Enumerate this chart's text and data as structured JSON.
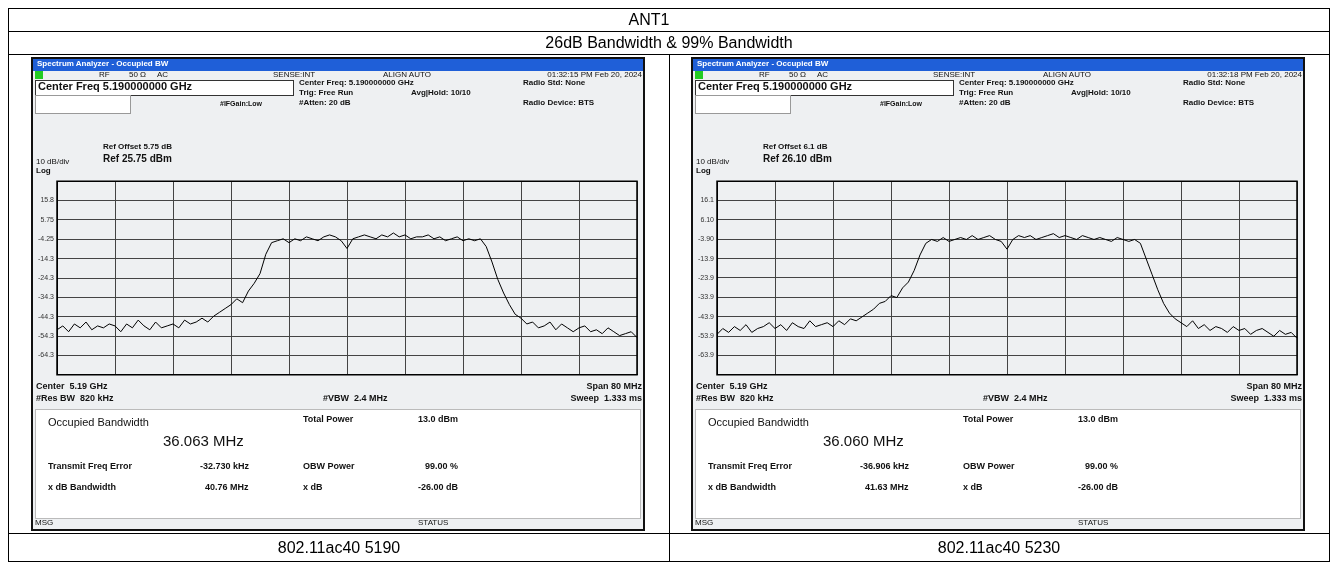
{
  "chart_data": [
    {
      "type": "line",
      "title": "ANT1",
      "subtitle": "26dB Bandwidth & 99% Bandwidth",
      "categories": [
        null,
        null,
        null,
        null,
        null,
        null,
        null,
        null,
        null,
        null,
        null,
        null,
        null,
        null,
        null,
        null,
        null,
        null,
        null,
        null,
        null,
        null,
        null,
        null,
        null,
        null,
        null,
        null,
        null,
        null,
        null,
        null,
        null,
        null,
        null,
        null,
        null,
        null,
        null,
        null,
        null,
        null,
        null,
        null,
        null,
        null,
        null,
        null,
        null,
        null,
        null,
        null,
        null,
        null,
        null,
        null,
        null,
        null,
        null,
        null,
        null,
        null,
        null,
        null,
        null,
        null,
        null,
        null,
        null,
        null,
        null,
        null,
        null,
        null,
        null,
        null,
        null,
        null,
        null,
        null,
        null,
        null,
        null,
        null,
        null,
        null,
        null,
        null,
        null,
        null,
        null,
        null,
        null,
        null,
        null,
        null,
        null,
        null,
        null,
        null,
        null
      ],
      "values": [
        -51,
        -49,
        -52,
        -48,
        -50,
        -47,
        -51,
        -49,
        -50,
        -48,
        -49,
        -52,
        -48,
        -50,
        -46,
        -49,
        -51,
        -47,
        -50,
        -49,
        -48,
        -50,
        -46,
        -48,
        -47,
        -45,
        -47,
        -44,
        -42,
        -40,
        -38,
        -35,
        -37,
        -31,
        -27,
        -22,
        -12,
        -6,
        -5,
        -4,
        -6,
        -4,
        -5,
        -3,
        -4,
        -5,
        -3,
        -2,
        -3,
        -5,
        -9,
        -4,
        -3,
        -2,
        -3,
        -4,
        -2,
        -3,
        -1,
        -3,
        -2,
        -4,
        -3,
        -3,
        -2,
        -4,
        -3,
        -5,
        -4,
        -3,
        -5,
        -4,
        -5,
        -4,
        -8,
        -16,
        -25,
        -32,
        -38,
        -43,
        -45,
        -48,
        -47,
        -50,
        -49,
        -47,
        -51,
        -48,
        -50,
        -52,
        -50,
        -49,
        -52,
        -51,
        -53,
        -50,
        -52,
        -54,
        -53,
        -52,
        -55
      ],
      "color": "#000000",
      "ylim": [
        -74.25,
        25.75
      ],
      "yticks": [
        {
          "value": 15.75,
          "label": "15.8"
        },
        5.75,
        -4.25,
        {
          "value": -14.25,
          "label": "-14.3"
        },
        {
          "value": -24.25,
          "label": "-24.3"
        },
        {
          "value": -34.25,
          "label": "-34.3"
        },
        {
          "value": -44.25,
          "label": "-44.3"
        },
        {
          "value": -54.25,
          "label": "-54.3"
        },
        {
          "value": -64.25,
          "label": "-64.3"
        }
      ],
      "grid": true,
      "tick_labels": "y",
      "annotations": [
        "Spectrum Analyzer - Occupied BW",
        "RF",
        "50 Ω",
        "AC",
        "SENSE:INT",
        "ALIGN AUTO",
        "01:32:15 PM Feb 20, 2024",
        "Center Freq 5.190000000 GHz",
        "Center Freq: 5.190000000 GHz",
        "Trig: Free Run",
        "Avg|Hold: 10/10",
        "#IFGain:Low",
        "#Atten: 20 dB",
        "Radio Std: None",
        "Radio Device: BTS",
        "Ref Offset 5.75 dB",
        "10 dB/div",
        "Ref 25.75 dBm",
        "Log",
        "Center  5.19 GHz",
        "Span 80 MHz",
        "#Res BW  820 kHz",
        "#VBW  2.4 MHz",
        "Sweep  1.333 ms",
        "Occupied Bandwidth",
        "36.063 MHz",
        "Total Power",
        "13.0 dBm",
        "Transmit Freq Error",
        "-32.730 kHz",
        "OBW Power",
        "99.00 %",
        "x dB Bandwidth",
        "40.76 MHz",
        "x dB",
        "-26.00 dB",
        "MSG",
        "STATUS",
        "802.11ac40 5190"
      ]
    },
    {
      "type": "line",
      "categories": [
        null,
        null,
        null,
        null,
        null,
        null,
        null,
        null,
        null,
        null,
        null,
        null,
        null,
        null,
        null,
        null,
        null,
        null,
        null,
        null,
        null,
        null,
        null,
        null,
        null,
        null,
        null,
        null,
        null,
        null,
        null,
        null,
        null,
        null,
        null,
        null,
        null,
        null,
        null,
        null,
        null,
        null,
        null,
        null,
        null,
        null,
        null,
        null,
        null,
        null,
        null,
        null,
        null,
        null,
        null,
        null,
        null,
        null,
        null,
        null,
        null,
        null,
        null,
        null,
        null,
        null,
        null,
        null,
        null,
        null,
        null,
        null,
        null,
        null,
        null,
        null,
        null,
        null,
        null,
        null,
        null,
        null,
        null,
        null,
        null,
        null,
        null,
        null,
        null,
        null,
        null,
        null,
        null,
        null,
        null,
        null,
        null,
        null,
        null,
        null,
        null
      ],
      "values": [
        -53,
        -50,
        -52,
        -49,
        -51,
        -48,
        -52,
        -50,
        -49,
        -47,
        -50,
        -48,
        -51,
        -47,
        -49,
        -50,
        -46,
        -49,
        -48,
        -47,
        -49,
        -46,
        -48,
        -45,
        -46,
        -44,
        -42,
        -40,
        -37,
        -36,
        -33,
        -34,
        -29,
        -26,
        -20,
        -12,
        -6,
        -4,
        -5,
        -3,
        -5,
        -4,
        -3,
        -4,
        -2,
        -4,
        -3,
        -2,
        -4,
        -5,
        -9,
        -4,
        -2,
        -3,
        -2,
        -4,
        -3,
        -2,
        -1,
        -3,
        -2,
        -3,
        -4,
        -2,
        -3,
        -4,
        -3,
        -4,
        -5,
        -3,
        -4,
        -5,
        -4,
        -6,
        -14,
        -22,
        -30,
        -37,
        -42,
        -45,
        -47,
        -49,
        -46,
        -50,
        -48,
        -51,
        -49,
        -50,
        -52,
        -49,
        -51,
        -50,
        -53,
        -51,
        -50,
        -52,
        -54,
        -51,
        -53,
        -52,
        -55
      ],
      "color": "#000000",
      "ylim": [
        -73.9,
        26.1
      ],
      "yticks": [
        16.1,
        {
          "value": 6.1,
          "label": "6.10"
        },
        {
          "value": -3.9,
          "label": "-3.90"
        },
        -13.9,
        -23.9,
        -33.9,
        -43.9,
        -53.9,
        -63.9
      ],
      "grid": true,
      "tick_labels": "y",
      "annotations": [
        "Spectrum Analyzer - Occupied BW",
        "RF",
        "50 Ω",
        "AC",
        "SENSE:INT",
        "ALIGN AUTO",
        "01:32:18 PM Feb 20, 2024",
        "Center Freq 5.190000000 GHz",
        "Center Freq: 5.190000000 GHz",
        "Trig: Free Run",
        "Avg|Hold: 10/10",
        "#IFGain:Low",
        "#Atten: 20 dB",
        "Radio Std: None",
        "Radio Device: BTS",
        "Ref Offset 6.1 dB",
        "10 dB/div",
        "Ref 26.10 dBm",
        "Log",
        "Center  5.19 GHz",
        "Span 80 MHz",
        "#Res BW  820 kHz",
        "#VBW  2.4 MHz",
        "Sweep  1.333 ms",
        "Occupied Bandwidth",
        "36.060 MHz",
        "Total Power",
        "13.0 dBm",
        "Transmit Freq Error",
        "-36.906 kHz",
        "OBW Power",
        "99.00 %",
        "x dB Bandwidth",
        "41.63 MHz",
        "x dB",
        "-26.00 dB",
        "MSG",
        "STATUS",
        "802.11ac40 5230"
      ]
    }
  ]
}
